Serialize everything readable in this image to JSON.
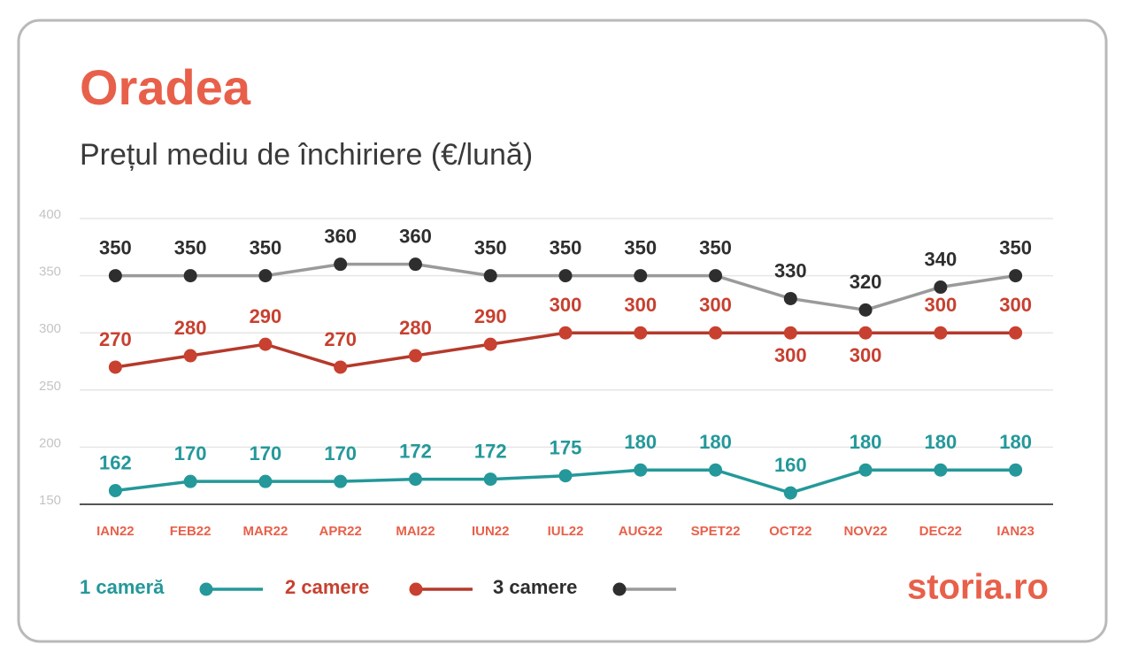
{
  "chart_data": {
    "type": "line",
    "title": "Oradea",
    "subtitle": "Prețul mediu de închiriere (€/lună)",
    "brand": "storia.ro",
    "categories": [
      "IAN22",
      "FEB22",
      "MAR22",
      "APR22",
      "MAI22",
      "IUN22",
      "IUL22",
      "AUG22",
      "SPET22",
      "OCT22",
      "NOV22",
      "DEC22",
      "IAN23"
    ],
    "series": [
      {
        "name": "1 cameră",
        "color": "#24989a",
        "marker_color": "#24989a",
        "values": [
          162,
          170,
          170,
          170,
          172,
          172,
          175,
          180,
          180,
          160,
          180,
          180,
          180
        ]
      },
      {
        "name": "2 camere",
        "color": "#b5392b",
        "marker_color": "#c8402f",
        "values": [
          270,
          280,
          290,
          270,
          280,
          290,
          300,
          300,
          300,
          300,
          300,
          300,
          300
        ]
      },
      {
        "name": "3 camere",
        "color": "#9a9a9a",
        "marker_color": "#2e2e2e",
        "values": [
          350,
          350,
          350,
          360,
          360,
          350,
          350,
          350,
          350,
          330,
          320,
          340,
          350
        ]
      }
    ],
    "ylim": [
      150,
      400
    ],
    "yticks": [
      150,
      200,
      250,
      300,
      350,
      400
    ],
    "grid": true
  }
}
